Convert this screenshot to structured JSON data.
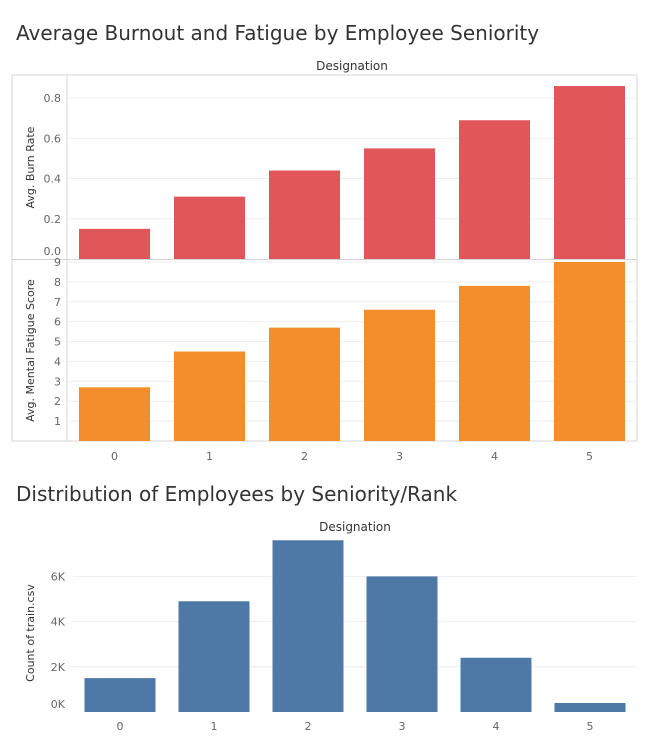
{
  "chart_data": [
    {
      "type": "bar",
      "title": "Average Burnout and Fatigue by Employee Seniority",
      "column_header": "Designation",
      "categories": [
        "0",
        "1",
        "2",
        "3",
        "4",
        "5"
      ],
      "panels": [
        {
          "ylabel": "Avg. Burn Rate",
          "color": "#e15759",
          "ylim": [
            0,
            0.9
          ],
          "ticks": [
            0.0,
            0.2,
            0.4,
            0.6,
            0.8
          ],
          "tick_labels": [
            "0.0",
            "0.2",
            "0.4",
            "0.6",
            "0.8"
          ],
          "values": [
            0.15,
            0.31,
            0.44,
            0.55,
            0.69,
            0.86
          ]
        },
        {
          "ylabel": "Avg. Mental Fatigue Score",
          "color": "#f28e2b",
          "ylim": [
            0,
            9
          ],
          "ticks": [
            1,
            2,
            3,
            4,
            5,
            6,
            7,
            8,
            9
          ],
          "tick_labels": [
            "1",
            "2",
            "3",
            "4",
            "5",
            "6",
            "7",
            "8",
            "9"
          ],
          "values": [
            2.7,
            4.5,
            5.7,
            6.6,
            7.8,
            9.0
          ]
        }
      ]
    },
    {
      "type": "bar",
      "title": "Distribution of Employees by Seniority/Rank",
      "column_header": "Designation",
      "categories": [
        "0",
        "1",
        "2",
        "3",
        "4",
        "5"
      ],
      "ylabel": "Count of train.csv",
      "color": "#4e79a7",
      "ylim": [
        0,
        7700
      ],
      "ticks": [
        0,
        2000,
        4000,
        6000
      ],
      "tick_labels": [
        "0K",
        "2K",
        "4K",
        "6K"
      ],
      "values": [
        1500,
        4900,
        7600,
        6000,
        2400,
        400
      ]
    }
  ]
}
